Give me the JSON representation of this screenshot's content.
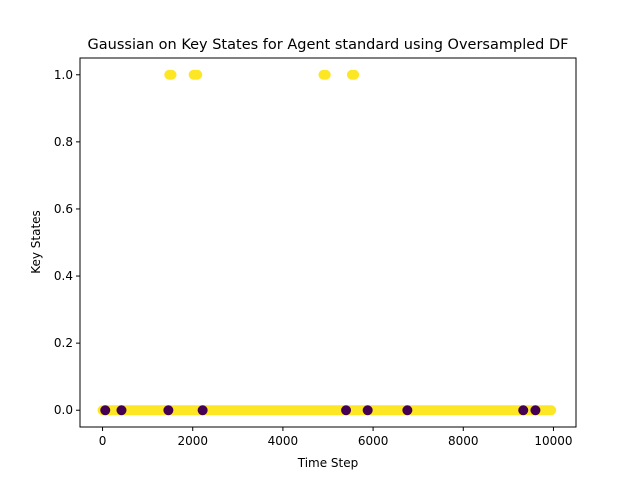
{
  "chart_data": {
    "type": "scatter",
    "title": "Gaussian on Key States for Agent standard using Oversampled DF",
    "xlabel": "Time Step",
    "ylabel": "Key States",
    "xlim": [
      -500,
      10500
    ],
    "ylim": [
      -0.05,
      1.05
    ],
    "xticks": [
      0,
      2000,
      4000,
      6000,
      8000,
      10000
    ],
    "yticks": [
      0.0,
      0.2,
      0.4,
      0.6,
      0.8,
      1.0
    ],
    "xtick_labels": [
      "0",
      "2000",
      "4000",
      "6000",
      "8000",
      "10000"
    ],
    "ytick_labels": [
      "0.0",
      "0.2",
      "0.4",
      "0.6",
      "0.8",
      "1.0"
    ],
    "grid": false,
    "legend": "none",
    "colors": {
      "positive": "#fde725",
      "negative": "#440154"
    },
    "series": [
      {
        "color_class": "positive",
        "x": [
          1480,
          1530,
          2020,
          2060,
          2100,
          4900,
          4950,
          5530,
          5580
        ],
        "y": [
          1,
          1,
          1,
          1,
          1,
          1,
          1,
          1,
          1
        ]
      },
      {
        "color_class": "negative",
        "x": [
          60,
          420,
          1460,
          2220,
          5400,
          5880,
          6760,
          9330,
          9600
        ],
        "y": [
          0,
          0,
          0,
          0,
          0,
          0,
          0,
          0,
          0
        ]
      }
    ],
    "band": {
      "color_class": "positive",
      "y": 0,
      "x_start": 0,
      "x_end": 9950
    }
  }
}
